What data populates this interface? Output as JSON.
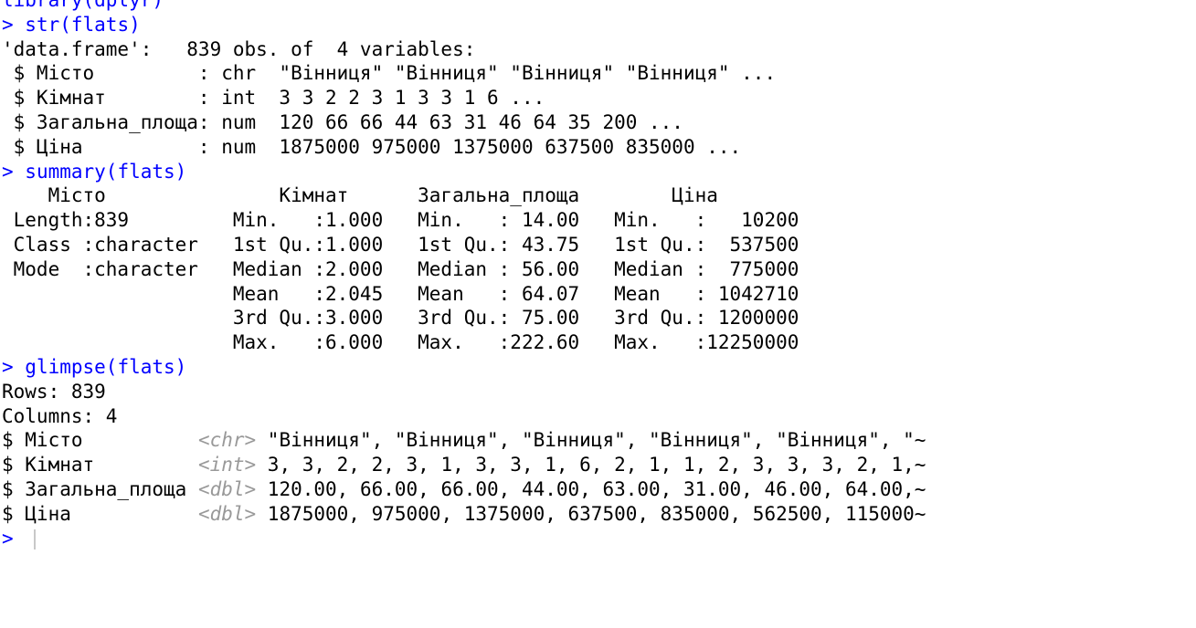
{
  "console": {
    "partial_top": "library(dplyr)",
    "str_prompt": "> ",
    "str_cmd": "str(flats)",
    "str_output": [
      "'data.frame':   839 obs. of  4 variables:",
      " $ Місто         : chr  \"Вінниця\" \"Вінниця\" \"Вінниця\" \"Вінниця\" ...",
      " $ Кімнат        : int  3 3 2 2 3 1 3 3 1 6 ...",
      " $ Загальна_площа: num  120 66 66 44 63 31 46 64 35 200 ...",
      " $ Ціна          : num  1875000 975000 1375000 637500 835000 ..."
    ],
    "summary_prompt": "> ",
    "summary_cmd": "summary(flats)",
    "summary_output": [
      "    Місто               Кімнат      Загальна_площа        Ціна         ",
      " Length:839         Min.   :1.000   Min.   : 14.00   Min.   :   10200  ",
      " Class :character   1st Qu.:1.000   1st Qu.: 43.75   1st Qu.:  537500  ",
      " Mode  :character   Median :2.000   Median : 56.00   Median :  775000  ",
      "                    Mean   :2.045   Mean   : 64.07   Mean   : 1042710  ",
      "                    3rd Qu.:3.000   3rd Qu.: 75.00   3rd Qu.: 1200000  ",
      "                    Max.   :6.000   Max.   :222.60   Max.   :12250000  "
    ],
    "glimpse_prompt": "> ",
    "glimpse_cmd": "glimpse(flats)",
    "glimpse_rows": "Rows: 839",
    "glimpse_cols": "Columns: 4",
    "glimpse_vars": [
      {
        "prefix": "$ Місто          ",
        "type": "<chr>",
        "values": " \"Вінниця\", \"Вінниця\", \"Вінниця\", \"Вінниця\", \"Вінниця\", \"~"
      },
      {
        "prefix": "$ Кімнат         ",
        "type": "<int>",
        "values": " 3, 3, 2, 2, 3, 1, 3, 3, 1, 6, 2, 1, 1, 2, 3, 3, 3, 2, 1,~"
      },
      {
        "prefix": "$ Загальна_площа ",
        "type": "<dbl>",
        "values": " 120.00, 66.00, 66.00, 44.00, 63.00, 31.00, 46.00, 64.00,~"
      },
      {
        "prefix": "$ Ціна           ",
        "type": "<dbl>",
        "values": " 1875000, 975000, 1375000, 637500, 835000, 562500, 115000~"
      }
    ],
    "final_prompt": "> "
  },
  "colors": {
    "command": "#0000ff",
    "output": "#000000",
    "type_tag": "#999999",
    "background": "#ffffff"
  }
}
